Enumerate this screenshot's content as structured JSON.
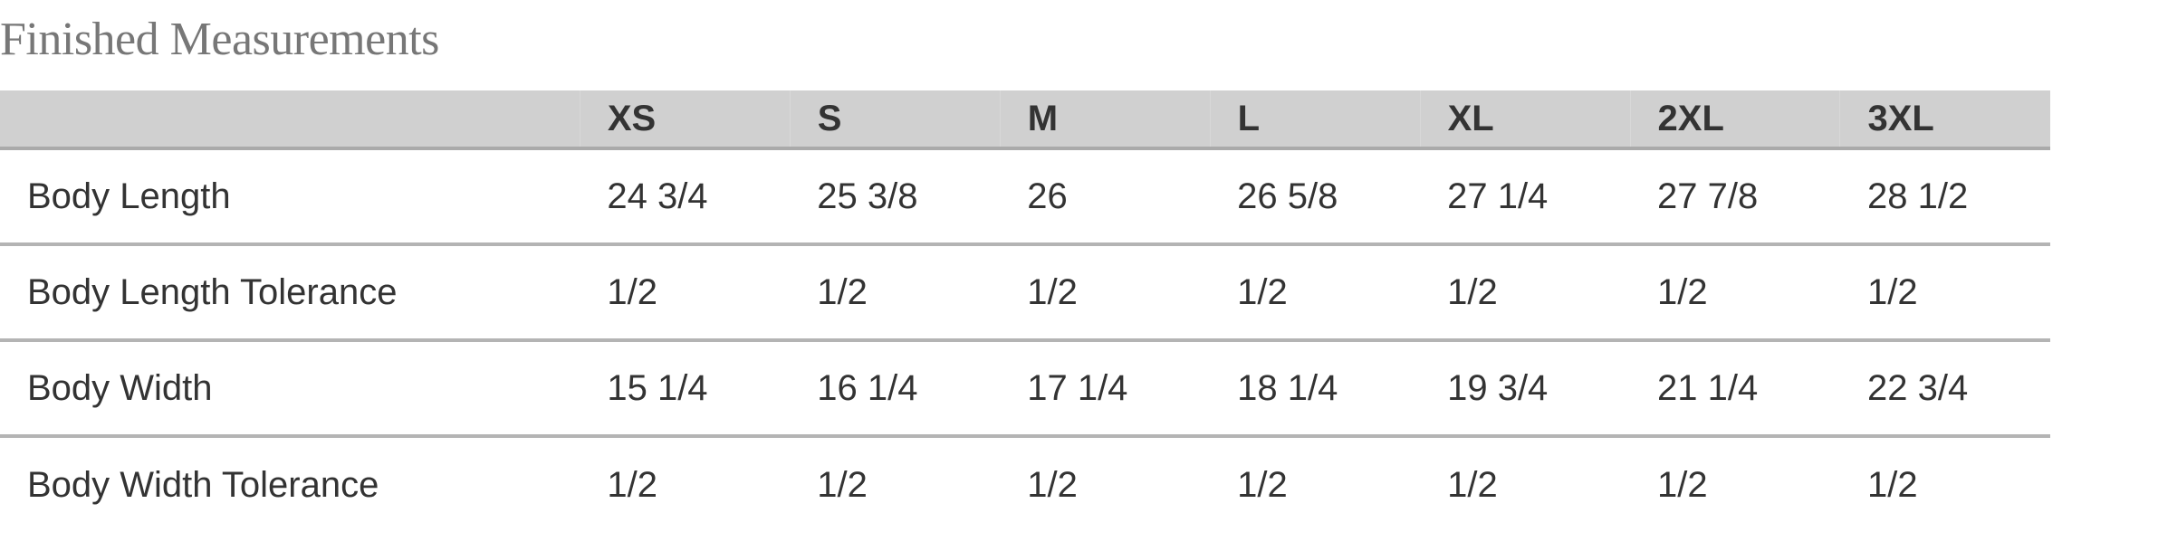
{
  "title": "Finished Measurements",
  "table": {
    "columns": [
      "",
      "XS",
      "S",
      "M",
      "L",
      "XL",
      "2XL",
      "3XL"
    ],
    "rows": [
      {
        "label": "Body Length",
        "values": [
          "24 3/4",
          "25 3/8",
          "26",
          "26 5/8",
          "27 1/4",
          "27 7/8",
          "28 1/2"
        ]
      },
      {
        "label": "Body Length Tolerance",
        "values": [
          "1/2",
          "1/2",
          "1/2",
          "1/2",
          "1/2",
          "1/2",
          "1/2"
        ]
      },
      {
        "label": "Body Width",
        "values": [
          "15 1/4",
          "16 1/4",
          "17 1/4",
          "18 1/4",
          "19 3/4",
          "21 1/4",
          "22 3/4"
        ]
      },
      {
        "label": "Body Width Tolerance",
        "values": [
          "1/2",
          "1/2",
          "1/2",
          "1/2",
          "1/2",
          "1/2",
          "1/2"
        ]
      }
    ]
  },
  "colors": {
    "header_bg": "#d0d0d0",
    "text": "#333333",
    "title": "#777777",
    "divider": "#b4b4b4"
  }
}
